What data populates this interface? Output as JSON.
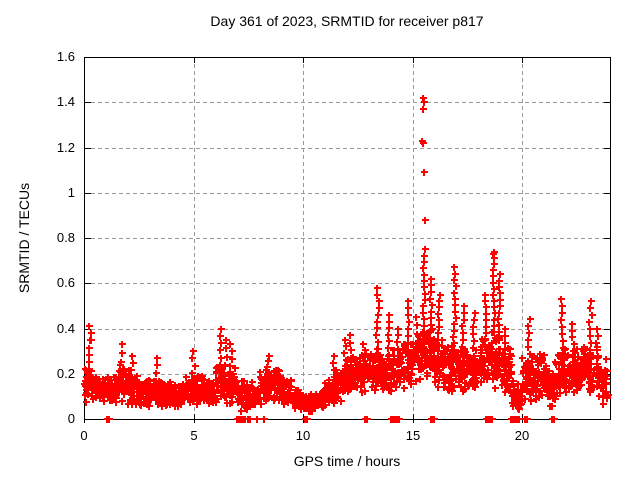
{
  "chart_data": {
    "type": "scatter",
    "title": "Day 361 of 2023, SRMTID for receiver p817",
    "xlabel": "GPS time / hours",
    "ylabel": "SRMTID / TECUs",
    "xlim": [
      0,
      24
    ],
    "ylim": [
      0,
      1.6
    ],
    "xticks": [
      {
        "v": 0,
        "label": "0"
      },
      {
        "v": 5,
        "label": "5"
      },
      {
        "v": 10,
        "label": "10"
      },
      {
        "v": 15,
        "label": "15"
      },
      {
        "v": 20,
        "label": "20"
      }
    ],
    "yticks": [
      {
        "v": 0,
        "label": "0"
      },
      {
        "v": 0.2,
        "label": "0.2"
      },
      {
        "v": 0.4,
        "label": "0.4"
      },
      {
        "v": 0.6,
        "label": "0.6"
      },
      {
        "v": 0.8,
        "label": "0.8"
      },
      {
        "v": 1,
        "label": "1"
      },
      {
        "v": 1.2,
        "label": "1.2"
      },
      {
        "v": 1.4,
        "label": "1.4"
      },
      {
        "v": 1.6,
        "label": "1.6"
      }
    ],
    "grid": true,
    "legend": "none",
    "marker": "plus",
    "colors": {
      "points": "#ff0000",
      "grid": "#999999",
      "axis": "#000000",
      "background": "#ffffff"
    },
    "series_name": "SRMTID",
    "points_per_bin": 44,
    "band_profile": [
      [
        0.0,
        0.5,
        0.07,
        0.26
      ],
      [
        0.5,
        1.0,
        0.06,
        0.2
      ],
      [
        1.0,
        1.5,
        0.05,
        0.22
      ],
      [
        1.5,
        2.0,
        0.06,
        0.25
      ],
      [
        2.0,
        2.5,
        0.05,
        0.22
      ],
      [
        2.5,
        3.0,
        0.05,
        0.18
      ],
      [
        3.0,
        3.5,
        0.05,
        0.2
      ],
      [
        3.5,
        4.0,
        0.04,
        0.18
      ],
      [
        4.0,
        4.5,
        0.04,
        0.16
      ],
      [
        4.5,
        5.0,
        0.05,
        0.21
      ],
      [
        5.0,
        5.5,
        0.05,
        0.2
      ],
      [
        5.5,
        6.0,
        0.05,
        0.18
      ],
      [
        6.0,
        6.5,
        0.06,
        0.28
      ],
      [
        6.5,
        7.0,
        0.06,
        0.24
      ],
      [
        7.0,
        7.5,
        0.03,
        0.17
      ],
      [
        7.5,
        8.0,
        0.04,
        0.18
      ],
      [
        8.0,
        8.5,
        0.05,
        0.24
      ],
      [
        8.5,
        9.0,
        0.07,
        0.24
      ],
      [
        9.0,
        9.5,
        0.06,
        0.2
      ],
      [
        9.5,
        10.0,
        0.03,
        0.14,
        36
      ],
      [
        10.0,
        10.5,
        0.02,
        0.12,
        36
      ],
      [
        10.5,
        11.0,
        0.03,
        0.14,
        36
      ],
      [
        11.0,
        11.5,
        0.05,
        0.18
      ],
      [
        11.5,
        12.0,
        0.07,
        0.24
      ],
      [
        12.0,
        12.5,
        0.1,
        0.28
      ],
      [
        12.5,
        13.0,
        0.1,
        0.3
      ],
      [
        13.0,
        13.5,
        0.12,
        0.33
      ],
      [
        13.5,
        14.0,
        0.1,
        0.3
      ],
      [
        14.0,
        14.5,
        0.12,
        0.33
      ],
      [
        14.5,
        15.0,
        0.12,
        0.36
      ],
      [
        15.0,
        15.5,
        0.14,
        0.4
      ],
      [
        15.5,
        16.0,
        0.15,
        0.42
      ],
      [
        16.0,
        16.5,
        0.12,
        0.38
      ],
      [
        16.5,
        17.0,
        0.12,
        0.36
      ],
      [
        17.0,
        17.5,
        0.12,
        0.34
      ],
      [
        17.5,
        18.0,
        0.1,
        0.33
      ],
      [
        18.0,
        18.5,
        0.12,
        0.38
      ],
      [
        18.5,
        19.0,
        0.1,
        0.42
      ],
      [
        19.0,
        19.5,
        0.08,
        0.32
      ],
      [
        19.5,
        20.0,
        0.03,
        0.18,
        34
      ],
      [
        20.0,
        20.5,
        0.05,
        0.3
      ],
      [
        20.5,
        21.0,
        0.08,
        0.3
      ],
      [
        21.0,
        21.5,
        0.05,
        0.26
      ],
      [
        21.5,
        22.0,
        0.08,
        0.33
      ],
      [
        22.0,
        22.5,
        0.1,
        0.32
      ],
      [
        22.5,
        23.0,
        0.1,
        0.34
      ],
      [
        23.0,
        23.5,
        0.08,
        0.32
      ],
      [
        23.5,
        23.9,
        0.05,
        0.28,
        34
      ]
    ],
    "peaks": [
      [
        0.28,
        0.41
      ],
      [
        1.7,
        0.33
      ],
      [
        2.2,
        0.28
      ],
      [
        3.3,
        0.27
      ],
      [
        5.0,
        0.3
      ],
      [
        6.2,
        0.4
      ],
      [
        6.45,
        0.35
      ],
      [
        6.7,
        0.33
      ],
      [
        8.4,
        0.28
      ],
      [
        11.4,
        0.28
      ],
      [
        11.9,
        0.35
      ],
      [
        12.2,
        0.37
      ],
      [
        12.8,
        0.33
      ],
      [
        13.4,
        0.58
      ],
      [
        13.9,
        0.46
      ],
      [
        14.3,
        0.4
      ],
      [
        14.8,
        0.52
      ],
      [
        15.2,
        0.45
      ],
      [
        15.5,
        0.75
      ],
      [
        15.8,
        0.62
      ],
      [
        16.2,
        0.55
      ],
      [
        16.9,
        0.67
      ],
      [
        17.3,
        0.5
      ],
      [
        17.8,
        0.47
      ],
      [
        18.3,
        0.55
      ],
      [
        18.7,
        0.74
      ],
      [
        18.95,
        0.64
      ],
      [
        19.2,
        0.4
      ],
      [
        20.3,
        0.44
      ],
      [
        21.8,
        0.53
      ],
      [
        22.3,
        0.42
      ],
      [
        23.1,
        0.52
      ],
      [
        23.4,
        0.4
      ]
    ],
    "outliers": [
      [
        15.45,
        1.42
      ],
      [
        15.5,
        1.4
      ],
      [
        15.47,
        1.37
      ],
      [
        15.43,
        1.23
      ],
      [
        15.46,
        1.22
      ],
      [
        15.5,
        1.09
      ],
      [
        15.55,
        0.88
      ],
      [
        0.28,
        0.35
      ],
      [
        18.68,
        0.73
      ]
    ],
    "zero_clusters": [
      [
        1.1,
        2
      ],
      [
        7.15,
        5
      ],
      [
        7.55,
        2
      ],
      [
        7.9,
        1
      ],
      [
        8.2,
        1
      ],
      [
        10.15,
        2
      ],
      [
        12.85,
        2
      ],
      [
        14.2,
        5
      ],
      [
        15.9,
        3
      ],
      [
        18.5,
        4
      ],
      [
        19.65,
        5
      ],
      [
        20.15,
        2
      ],
      [
        21.4,
        2
      ]
    ]
  }
}
